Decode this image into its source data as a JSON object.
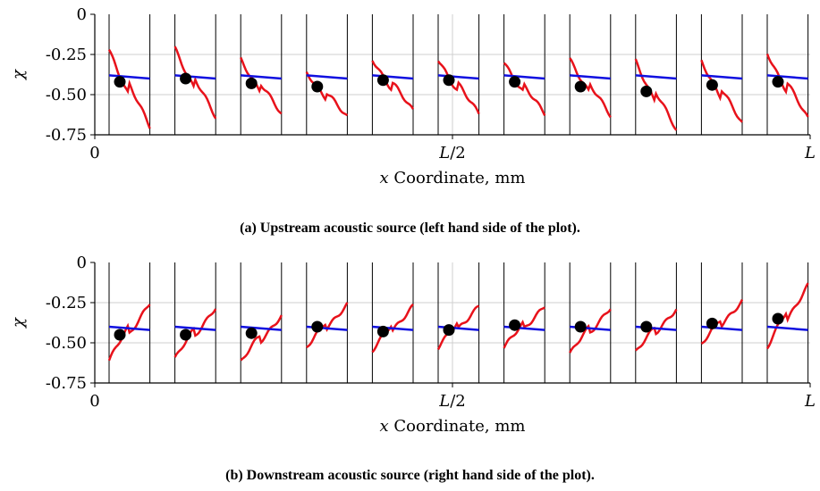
{
  "chart_data": [
    {
      "type": "line",
      "caption": "(a) Upstream acoustic source (left hand side of the plot).",
      "xlabel_var": "x",
      "xlabel_text": " Coordinate, mm",
      "ylabel": "χ",
      "ylim": [
        -0.75,
        0
      ],
      "y_ticks": [
        0,
        -0.25,
        -0.5,
        -0.75
      ],
      "y_tick_labels": [
        "0",
        "-0.25",
        "-0.50",
        "-0.75"
      ],
      "x_tick_labels": [
        "0",
        "L/2",
        "L"
      ],
      "x_ticks": [
        0,
        0.5,
        1
      ],
      "grid": true,
      "windows": [
        0.02,
        0.112,
        0.204,
        0.296,
        0.388,
        0.48,
        0.572,
        0.664,
        0.756,
        0.848,
        0.94
      ],
      "window_width": 0.057,
      "blue_series": [
        [
          -0.38,
          -0.4
        ],
        [
          -0.38,
          -0.4
        ],
        [
          -0.38,
          -0.4
        ],
        [
          -0.38,
          -0.4
        ],
        [
          -0.38,
          -0.4
        ],
        [
          -0.38,
          -0.4
        ],
        [
          -0.38,
          -0.4
        ],
        [
          -0.38,
          -0.4
        ],
        [
          -0.38,
          -0.4
        ],
        [
          -0.38,
          -0.4
        ],
        [
          -0.38,
          -0.4
        ]
      ],
      "red_series": [
        [
          -0.22,
          -0.7
        ],
        [
          -0.21,
          -0.64
        ],
        [
          -0.28,
          -0.62
        ],
        [
          -0.36,
          -0.64
        ],
        [
          -0.28,
          -0.6
        ],
        [
          -0.28,
          -0.62
        ],
        [
          -0.3,
          -0.62
        ],
        [
          -0.28,
          -0.63
        ],
        [
          -0.29,
          -0.72
        ],
        [
          -0.29,
          -0.68
        ],
        [
          -0.24,
          -0.65
        ]
      ],
      "points": [
        {
          "x": 0.035,
          "y": -0.42
        },
        {
          "x": 0.127,
          "y": -0.4
        },
        {
          "x": 0.219,
          "y": -0.43
        },
        {
          "x": 0.311,
          "y": -0.45
        },
        {
          "x": 0.403,
          "y": -0.41
        },
        {
          "x": 0.495,
          "y": -0.41
        },
        {
          "x": 0.587,
          "y": -0.42
        },
        {
          "x": 0.679,
          "y": -0.45
        },
        {
          "x": 0.771,
          "y": -0.48
        },
        {
          "x": 0.863,
          "y": -0.44
        },
        {
          "x": 0.955,
          "y": -0.42
        }
      ]
    },
    {
      "type": "line",
      "caption": "(b) Downstream acoustic source (right hand side of the plot).",
      "xlabel_var": "x",
      "xlabel_text": " Coordinate, mm",
      "ylabel": "χ",
      "ylim": [
        -0.75,
        0
      ],
      "y_ticks": [
        0,
        -0.25,
        -0.5,
        -0.75
      ],
      "y_tick_labels": [
        "0",
        "-0.25",
        "-0.50",
        "-0.75"
      ],
      "x_tick_labels": [
        "0",
        "L/2",
        "L"
      ],
      "x_ticks": [
        0,
        0.5,
        1
      ],
      "grid": true,
      "windows": [
        0.02,
        0.112,
        0.204,
        0.296,
        0.388,
        0.48,
        0.572,
        0.664,
        0.756,
        0.848,
        0.94
      ],
      "window_width": 0.057,
      "blue_series": [
        [
          -0.4,
          -0.42
        ],
        [
          -0.4,
          -0.42
        ],
        [
          -0.4,
          -0.42
        ],
        [
          -0.4,
          -0.42
        ],
        [
          -0.4,
          -0.42
        ],
        [
          -0.4,
          -0.42
        ],
        [
          -0.4,
          -0.42
        ],
        [
          -0.4,
          -0.42
        ],
        [
          -0.4,
          -0.42
        ],
        [
          -0.4,
          -0.42
        ],
        [
          -0.4,
          -0.42
        ]
      ],
      "red_series": [
        [
          -0.61,
          -0.25
        ],
        [
          -0.6,
          -0.28
        ],
        [
          -0.62,
          -0.33
        ],
        [
          -0.53,
          -0.26
        ],
        [
          -0.55,
          -0.27
        ],
        [
          -0.53,
          -0.27
        ],
        [
          -0.53,
          -0.27
        ],
        [
          -0.57,
          -0.28
        ],
        [
          -0.56,
          -0.29
        ],
        [
          -0.51,
          -0.24
        ],
        [
          -0.53,
          -0.14
        ]
      ],
      "points": [
        {
          "x": 0.035,
          "y": -0.45
        },
        {
          "x": 0.127,
          "y": -0.45
        },
        {
          "x": 0.219,
          "y": -0.44
        },
        {
          "x": 0.311,
          "y": -0.4
        },
        {
          "x": 0.403,
          "y": -0.43
        },
        {
          "x": 0.495,
          "y": -0.42
        },
        {
          "x": 0.587,
          "y": -0.39
        },
        {
          "x": 0.679,
          "y": -0.4
        },
        {
          "x": 0.771,
          "y": -0.4
        },
        {
          "x": 0.863,
          "y": -0.38
        },
        {
          "x": 0.955,
          "y": -0.35
        }
      ]
    }
  ]
}
